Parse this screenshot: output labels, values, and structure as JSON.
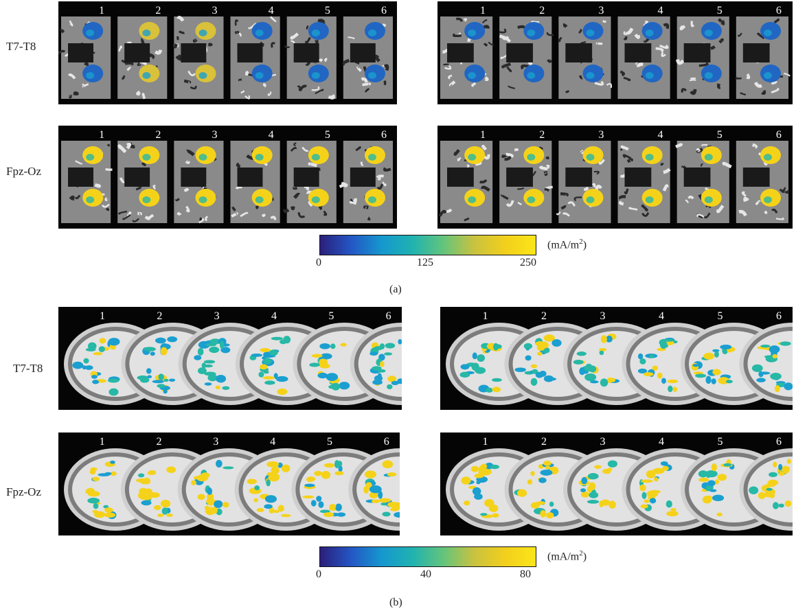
{
  "slice_numbers": [
    "1",
    "2",
    "3",
    "4",
    "5",
    "6"
  ],
  "section_a": {
    "row_labels": [
      "T7-T8",
      "Fpz-Oz"
    ],
    "colorbar": {
      "min_label": "0",
      "mid_label": "125",
      "max_label": "250",
      "unit": "(mA/m",
      "unit_sup": "2",
      "unit_close": ")"
    },
    "caption": "(a)"
  },
  "section_b": {
    "row_labels": [
      "T7-T8",
      "Fpz-Oz"
    ],
    "colorbar": {
      "min_label": "0",
      "mid_label": "40",
      "max_label": "80",
      "unit": "(mA/m",
      "unit_sup": "2",
      "unit_close": ")"
    },
    "caption": "(b)"
  },
  "colormap": [
    "#3a2d8f",
    "#2166c2",
    "#1a9fd0",
    "#27b8a6",
    "#7bc96a",
    "#d9c13a",
    "#f5d21a",
    "#fbe51a"
  ]
}
